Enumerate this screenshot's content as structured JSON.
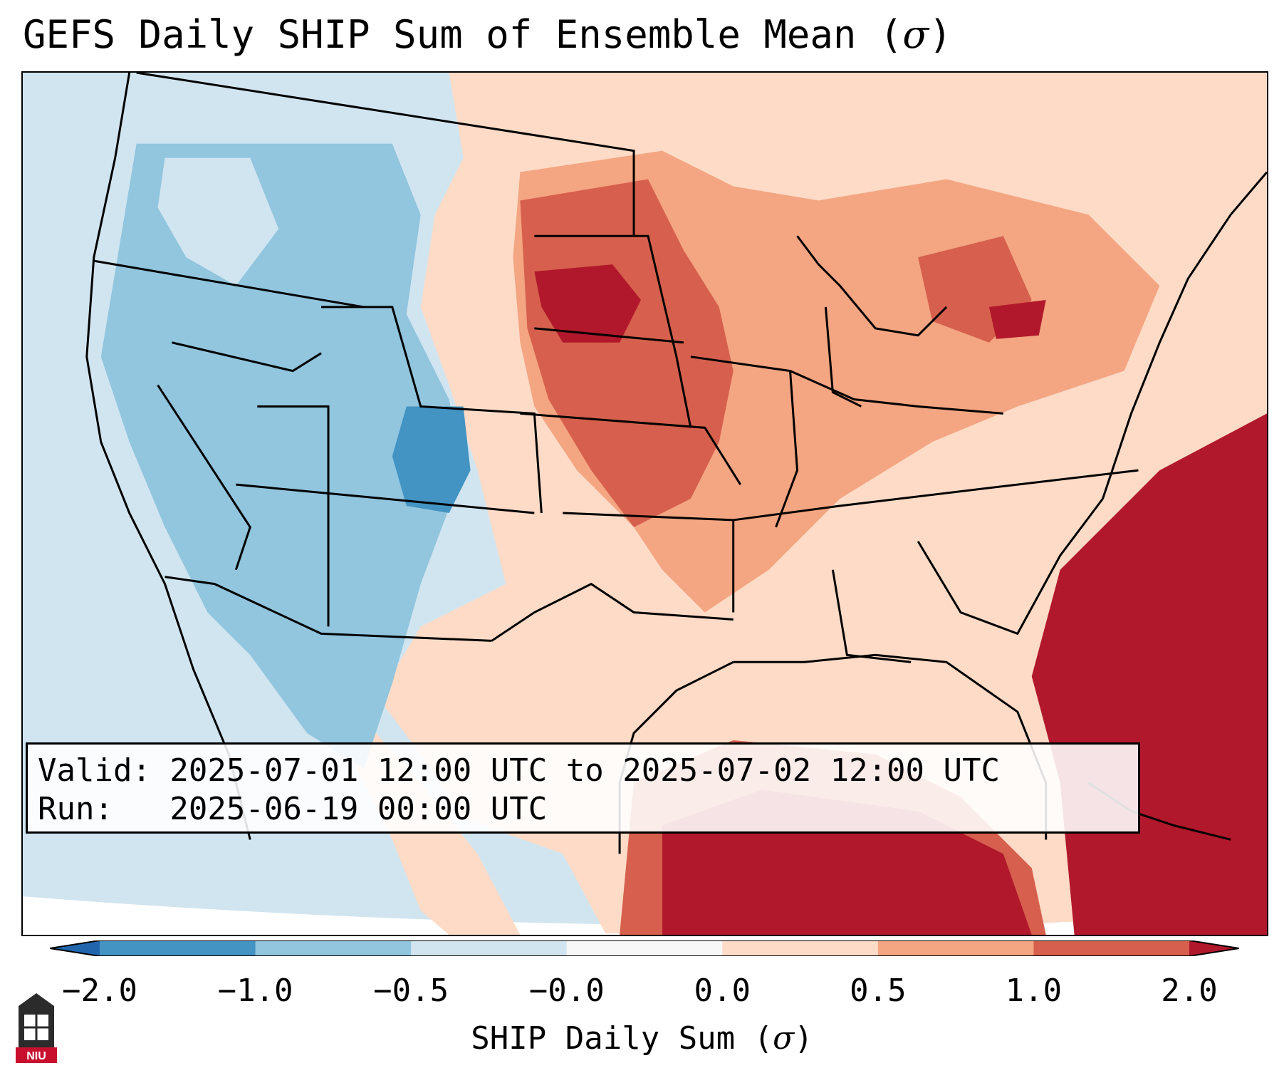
{
  "title_text": "GEFS Daily SHIP Sum of Ensemble Mean (",
  "title_symbol": "σ",
  "title_close": ")",
  "info": {
    "valid_line": "Valid: 2025-07-01 12:00 UTC to 2025-07-02 12:00 UTC",
    "run_line": "Run:   2025-06-19 00:00 UTC"
  },
  "colorbar": {
    "label_text": "SHIP Daily Sum (",
    "label_symbol": "σ",
    "label_close": ")",
    "ticks": [
      "−2.0",
      "−1.0",
      "−0.5",
      "−0.0",
      "0.0",
      "0.5",
      "1.0",
      "2.0"
    ],
    "bins": [
      {
        "from": "-2.0",
        "to": "-1.0",
        "color": "#4393c3"
      },
      {
        "from": "-1.0",
        "to": "-0.5",
        "color": "#92c5de"
      },
      {
        "from": "-0.5",
        "to": "-0.0",
        "color": "#d1e5f0"
      },
      {
        "from": "-0.0",
        "to": "0.0",
        "color": "#f7f7f7"
      },
      {
        "from": "0.0",
        "to": "0.5",
        "color": "#fddbc7"
      },
      {
        "from": "0.5",
        "to": "1.0",
        "color": "#f4a582"
      },
      {
        "from": "1.0",
        "to": "2.0",
        "color": "#d6604d"
      }
    ],
    "under_color": "#2166ac",
    "over_color": "#b2182b"
  },
  "logo": {
    "text": "NIU",
    "color": "#c8102e"
  }
}
